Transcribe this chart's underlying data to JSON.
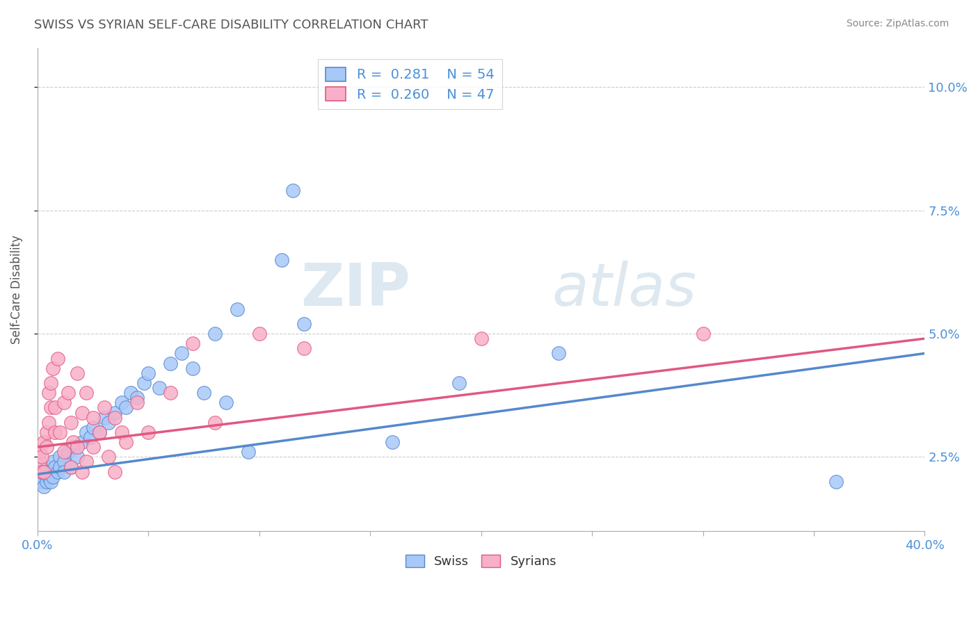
{
  "title": "SWISS VS SYRIAN SELF-CARE DISABILITY CORRELATION CHART",
  "source": "Source: ZipAtlas.com",
  "ylabel": "Self-Care Disability",
  "ytick_labels": [
    "2.5%",
    "5.0%",
    "7.5%",
    "10.0%"
  ],
  "ytick_values": [
    0.025,
    0.05,
    0.075,
    0.1
  ],
  "xlim": [
    0.0,
    0.4
  ],
  "ylim": [
    0.01,
    0.108
  ],
  "swiss_color": "#a8c8f8",
  "syrian_color": "#f8b0c8",
  "swiss_line_color": "#5588cc",
  "syrian_line_color": "#e05880",
  "R_swiss": 0.281,
  "N_swiss": 54,
  "R_syrian": 0.26,
  "N_syrian": 47,
  "legend_label_swiss": "Swiss",
  "legend_label_syrian": "Syrians",
  "swiss_scatter": [
    [
      0.001,
      0.021
    ],
    [
      0.001,
      0.022
    ],
    [
      0.002,
      0.02
    ],
    [
      0.002,
      0.023
    ],
    [
      0.003,
      0.019
    ],
    [
      0.003,
      0.022
    ],
    [
      0.004,
      0.021
    ],
    [
      0.004,
      0.02
    ],
    [
      0.005,
      0.023
    ],
    [
      0.005,
      0.021
    ],
    [
      0.006,
      0.022
    ],
    [
      0.006,
      0.02
    ],
    [
      0.007,
      0.024
    ],
    [
      0.007,
      0.021
    ],
    [
      0.008,
      0.023
    ],
    [
      0.009,
      0.022
    ],
    [
      0.01,
      0.025
    ],
    [
      0.01,
      0.023
    ],
    [
      0.012,
      0.024
    ],
    [
      0.012,
      0.022
    ],
    [
      0.014,
      0.026
    ],
    [
      0.015,
      0.023
    ],
    [
      0.016,
      0.027
    ],
    [
      0.018,
      0.025
    ],
    [
      0.02,
      0.028
    ],
    [
      0.022,
      0.03
    ],
    [
      0.024,
      0.029
    ],
    [
      0.025,
      0.031
    ],
    [
      0.028,
      0.03
    ],
    [
      0.03,
      0.033
    ],
    [
      0.032,
      0.032
    ],
    [
      0.035,
      0.034
    ],
    [
      0.038,
      0.036
    ],
    [
      0.04,
      0.035
    ],
    [
      0.042,
      0.038
    ],
    [
      0.045,
      0.037
    ],
    [
      0.048,
      0.04
    ],
    [
      0.05,
      0.042
    ],
    [
      0.055,
      0.039
    ],
    [
      0.06,
      0.044
    ],
    [
      0.065,
      0.046
    ],
    [
      0.07,
      0.043
    ],
    [
      0.075,
      0.038
    ],
    [
      0.08,
      0.05
    ],
    [
      0.085,
      0.036
    ],
    [
      0.09,
      0.055
    ],
    [
      0.095,
      0.026
    ],
    [
      0.11,
      0.065
    ],
    [
      0.115,
      0.079
    ],
    [
      0.12,
      0.052
    ],
    [
      0.16,
      0.028
    ],
    [
      0.19,
      0.04
    ],
    [
      0.235,
      0.046
    ],
    [
      0.36,
      0.02
    ]
  ],
  "syrian_scatter": [
    [
      0.001,
      0.024
    ],
    [
      0.001,
      0.026
    ],
    [
      0.002,
      0.022
    ],
    [
      0.002,
      0.025
    ],
    [
      0.003,
      0.028
    ],
    [
      0.003,
      0.022
    ],
    [
      0.004,
      0.03
    ],
    [
      0.004,
      0.027
    ],
    [
      0.005,
      0.038
    ],
    [
      0.005,
      0.032
    ],
    [
      0.006,
      0.04
    ],
    [
      0.006,
      0.035
    ],
    [
      0.007,
      0.043
    ],
    [
      0.008,
      0.035
    ],
    [
      0.008,
      0.03
    ],
    [
      0.009,
      0.045
    ],
    [
      0.01,
      0.03
    ],
    [
      0.012,
      0.036
    ],
    [
      0.012,
      0.026
    ],
    [
      0.014,
      0.038
    ],
    [
      0.015,
      0.032
    ],
    [
      0.015,
      0.023
    ],
    [
      0.016,
      0.028
    ],
    [
      0.018,
      0.042
    ],
    [
      0.018,
      0.027
    ],
    [
      0.02,
      0.034
    ],
    [
      0.02,
      0.022
    ],
    [
      0.022,
      0.038
    ],
    [
      0.022,
      0.024
    ],
    [
      0.025,
      0.033
    ],
    [
      0.025,
      0.027
    ],
    [
      0.028,
      0.03
    ],
    [
      0.03,
      0.035
    ],
    [
      0.032,
      0.025
    ],
    [
      0.035,
      0.033
    ],
    [
      0.035,
      0.022
    ],
    [
      0.038,
      0.03
    ],
    [
      0.04,
      0.028
    ],
    [
      0.045,
      0.036
    ],
    [
      0.05,
      0.03
    ],
    [
      0.06,
      0.038
    ],
    [
      0.07,
      0.048
    ],
    [
      0.08,
      0.032
    ],
    [
      0.1,
      0.05
    ],
    [
      0.12,
      0.047
    ],
    [
      0.2,
      0.049
    ],
    [
      0.3,
      0.05
    ]
  ],
  "watermark_zip": "ZIP",
  "watermark_atlas": "atlas",
  "background_color": "#ffffff",
  "grid_color": "#cccccc",
  "title_color": "#555555",
  "tick_label_color": "#4a90d9",
  "ylabel_color": "#555555"
}
